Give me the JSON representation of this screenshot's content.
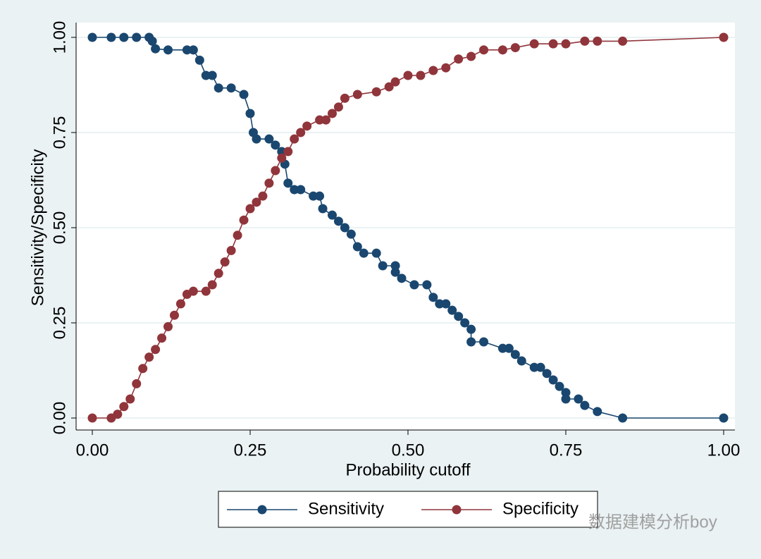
{
  "chart_data": {
    "type": "line",
    "xlabel": "Probability cutoff",
    "ylabel": "Sensitivity/Specificity",
    "xlim": [
      0,
      1
    ],
    "ylim": [
      0,
      1
    ],
    "xticks": [
      {
        "value": 0,
        "label": "0.00"
      },
      {
        "value": 0.25,
        "label": "0.25"
      },
      {
        "value": 0.5,
        "label": "0.50"
      },
      {
        "value": 0.75,
        "label": "0.75"
      },
      {
        "value": 1,
        "label": "1.00"
      }
    ],
    "yticks": [
      {
        "value": 0,
        "label": "0.00"
      },
      {
        "value": 0.25,
        "label": "0.25"
      },
      {
        "value": 0.5,
        "label": "0.50"
      },
      {
        "value": 0.75,
        "label": "0.75"
      },
      {
        "value": 1,
        "label": "1.00"
      }
    ],
    "grid": true,
    "legend": "bottom",
    "watermark": "数据建模分析boy",
    "series": [
      {
        "name": "Sensitivity",
        "color": "#1a476f",
        "x": [
          0,
          0.03,
          0.05,
          0.07,
          0.09,
          0.095,
          0.1,
          0.12,
          0.15,
          0.16,
          0.17,
          0.18,
          0.19,
          0.2,
          0.22,
          0.24,
          0.25,
          0.255,
          0.26,
          0.28,
          0.29,
          0.3,
          0.305,
          0.31,
          0.32,
          0.33,
          0.35,
          0.36,
          0.365,
          0.38,
          0.39,
          0.4,
          0.41,
          0.42,
          0.43,
          0.45,
          0.46,
          0.48,
          0.48,
          0.49,
          0.51,
          0.53,
          0.54,
          0.55,
          0.56,
          0.57,
          0.58,
          0.59,
          0.6,
          0.6,
          0.62,
          0.65,
          0.66,
          0.67,
          0.68,
          0.7,
          0.71,
          0.72,
          0.73,
          0.74,
          0.75,
          0.75,
          0.77,
          0.78,
          0.8,
          0.84,
          1
        ],
        "values": [
          1,
          1,
          1,
          1,
          1,
          0.99,
          0.97,
          0.967,
          0.967,
          0.967,
          0.94,
          0.9,
          0.9,
          0.867,
          0.867,
          0.85,
          0.8,
          0.75,
          0.733,
          0.733,
          0.717,
          0.7,
          0.667,
          0.617,
          0.6,
          0.6,
          0.583,
          0.583,
          0.55,
          0.533,
          0.517,
          0.5,
          0.483,
          0.45,
          0.433,
          0.433,
          0.4,
          0.4,
          0.383,
          0.367,
          0.35,
          0.35,
          0.317,
          0.3,
          0.3,
          0.283,
          0.267,
          0.25,
          0.233,
          0.2,
          0.2,
          0.183,
          0.183,
          0.167,
          0.15,
          0.133,
          0.133,
          0.117,
          0.1,
          0.083,
          0.067,
          0.05,
          0.05,
          0.033,
          0.017,
          0,
          0
        ]
      },
      {
        "name": "Specificity",
        "color": "#90353b",
        "x": [
          0,
          0.03,
          0.04,
          0.05,
          0.06,
          0.07,
          0.08,
          0.09,
          0.1,
          0.11,
          0.12,
          0.13,
          0.14,
          0.15,
          0.16,
          0.18,
          0.19,
          0.2,
          0.21,
          0.22,
          0.23,
          0.24,
          0.25,
          0.26,
          0.27,
          0.28,
          0.29,
          0.3,
          0.31,
          0.32,
          0.33,
          0.34,
          0.36,
          0.37,
          0.38,
          0.39,
          0.4,
          0.42,
          0.45,
          0.47,
          0.48,
          0.5,
          0.52,
          0.54,
          0.56,
          0.58,
          0.6,
          0.62,
          0.65,
          0.67,
          0.7,
          0.73,
          0.75,
          0.78,
          0.8,
          0.84,
          1
        ],
        "values": [
          0,
          0,
          0.01,
          0.03,
          0.05,
          0.09,
          0.13,
          0.16,
          0.18,
          0.21,
          0.24,
          0.27,
          0.3,
          0.325,
          0.333,
          0.333,
          0.35,
          0.38,
          0.41,
          0.44,
          0.48,
          0.52,
          0.55,
          0.567,
          0.583,
          0.617,
          0.65,
          0.683,
          0.7,
          0.733,
          0.75,
          0.767,
          0.783,
          0.783,
          0.8,
          0.817,
          0.84,
          0.85,
          0.857,
          0.87,
          0.883,
          0.9,
          0.9,
          0.913,
          0.92,
          0.943,
          0.95,
          0.967,
          0.967,
          0.973,
          0.983,
          0.983,
          0.983,
          0.99,
          0.99,
          0.99,
          1
        ]
      }
    ]
  }
}
